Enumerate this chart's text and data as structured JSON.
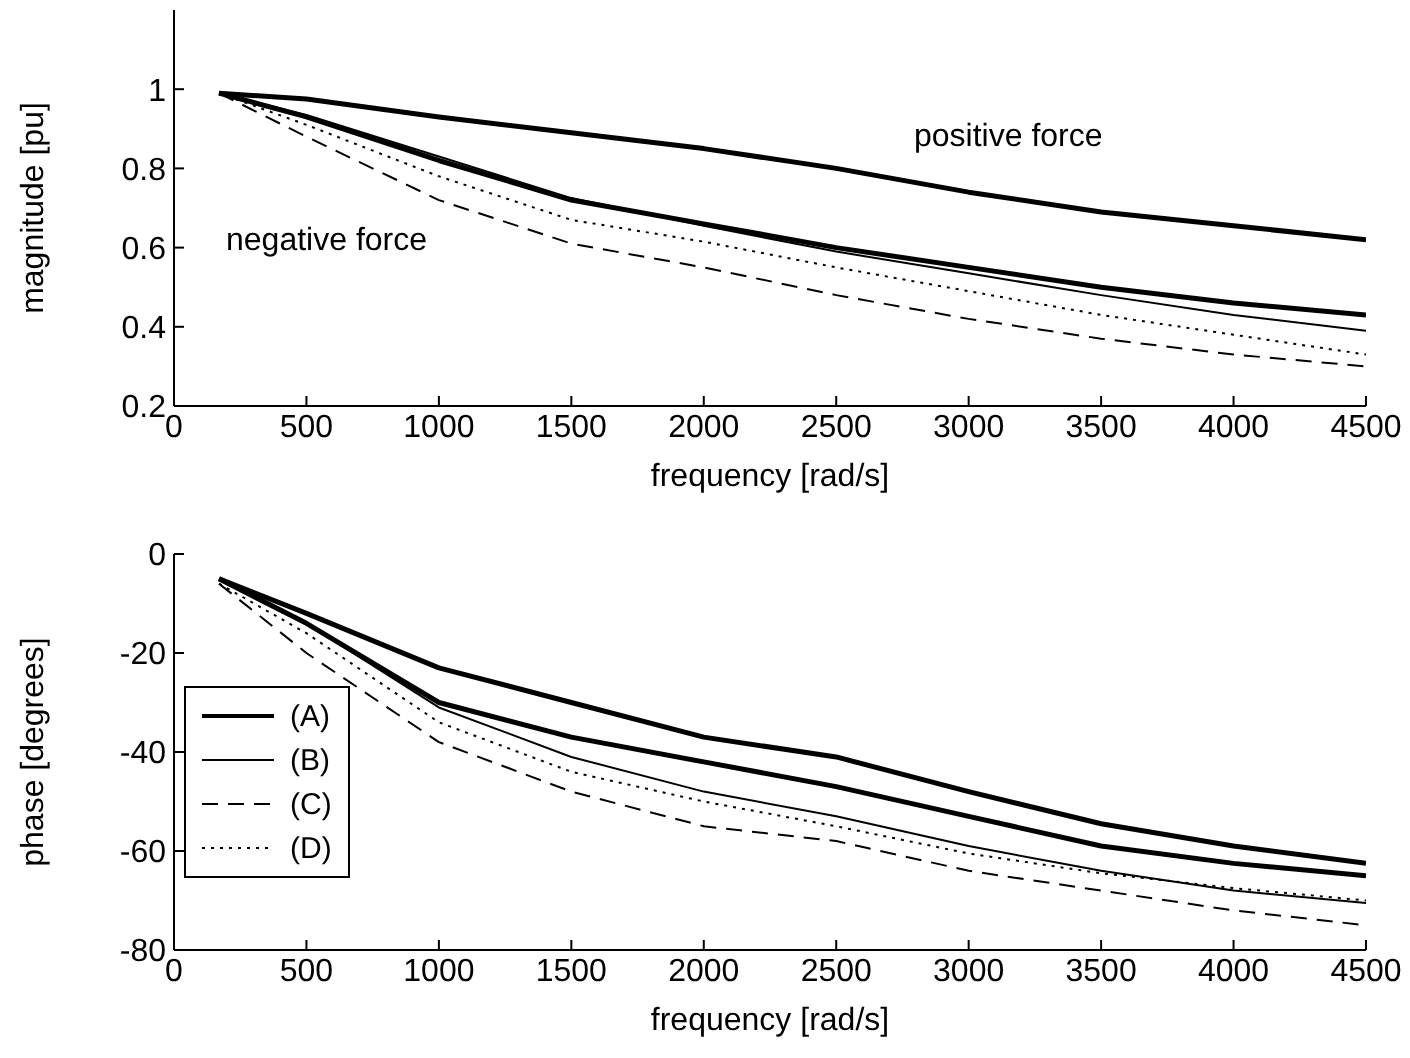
{
  "chart_data": [
    {
      "type": "line",
      "xlabel": "frequency [rad/s]",
      "ylabel": "magnitude [pu]",
      "x": [
        170,
        500,
        1000,
        1500,
        2000,
        2500,
        3000,
        3500,
        4000,
        4500
      ],
      "xlim": [
        0,
        4500
      ],
      "xticks": [
        0,
        500,
        1000,
        1500,
        2000,
        2500,
        3000,
        3500,
        4000,
        4500
      ],
      "ylim": [
        0.2,
        1.2
      ],
      "yticks": [
        0.2,
        0.4,
        0.6,
        0.8,
        1
      ],
      "grid": false,
      "legend": false,
      "marker": "none",
      "annotations": [
        "positive force",
        "negative force"
      ],
      "series": [
        {
          "color": "#000000",
          "line_style": "solid",
          "values": [
            0.99,
            0.975,
            0.93,
            0.89,
            0.85,
            0.8,
            0.74,
            0.69,
            0.655,
            0.62
          ]
        },
        {
          "color": "#000000",
          "line_style": "solid",
          "values": [
            0.99,
            0.93,
            0.82,
            0.72,
            0.66,
            0.6,
            0.55,
            0.5,
            0.46,
            0.43
          ]
        },
        {
          "color": "#000000",
          "line_style": "solid",
          "values": [
            0.99,
            0.935,
            0.83,
            0.725,
            0.655,
            0.59,
            0.535,
            0.48,
            0.43,
            0.39
          ]
        },
        {
          "color": "#000000",
          "line_style": "dashed",
          "values": [
            0.99,
            0.88,
            0.72,
            0.61,
            0.55,
            0.48,
            0.42,
            0.37,
            0.33,
            0.3
          ]
        },
        {
          "color": "#000000",
          "line_style": "dotted",
          "values": [
            0.99,
            0.91,
            0.78,
            0.67,
            0.615,
            0.55,
            0.49,
            0.43,
            0.38,
            0.33
          ]
        }
      ]
    },
    {
      "type": "line",
      "xlabel": "frequency [rad/s]",
      "ylabel": "phase [degrees]",
      "x": [
        170,
        500,
        1000,
        1500,
        2000,
        2500,
        3000,
        3500,
        4000,
        4500
      ],
      "xlim": [
        0,
        4500
      ],
      "xticks": [
        0,
        500,
        1000,
        1500,
        2000,
        2500,
        3000,
        3500,
        4000,
        4500
      ],
      "ylim": [
        -80,
        0
      ],
      "yticks": [
        -80,
        -60,
        -40,
        -20,
        0
      ],
      "grid": false,
      "legend": "left",
      "marker": "none",
      "series": [
        {
          "name": "(A)",
          "color": "#000000",
          "line_style": "solid",
          "values": [
            -5,
            -12,
            -23,
            -30,
            -37,
            -41,
            -48,
            -54.5,
            -59,
            -62.5
          ]
        },
        {
          "color": "#000000",
          "line_style": "solid",
          "values": [
            -5,
            -14,
            -30,
            -37,
            -42,
            -47,
            -53,
            -59,
            -62.5,
            -65
          ]
        },
        {
          "name": "(B)",
          "color": "#000000",
          "line_style": "solid",
          "values": [
            -5,
            -14,
            -31,
            -41,
            -48,
            -53,
            -59,
            -64,
            -68,
            -70.5
          ]
        },
        {
          "name": "(C)",
          "color": "#000000",
          "line_style": "dashed",
          "values": [
            -6,
            -20,
            -38,
            -48,
            -55,
            -58,
            -64,
            -68,
            -72,
            -75
          ]
        },
        {
          "name": "(D)",
          "color": "#000000",
          "line_style": "dotted",
          "values": [
            -6,
            -16,
            -34,
            -44,
            -50,
            -55,
            -60.5,
            -64.5,
            -67.5,
            -70
          ]
        }
      ]
    }
  ]
}
